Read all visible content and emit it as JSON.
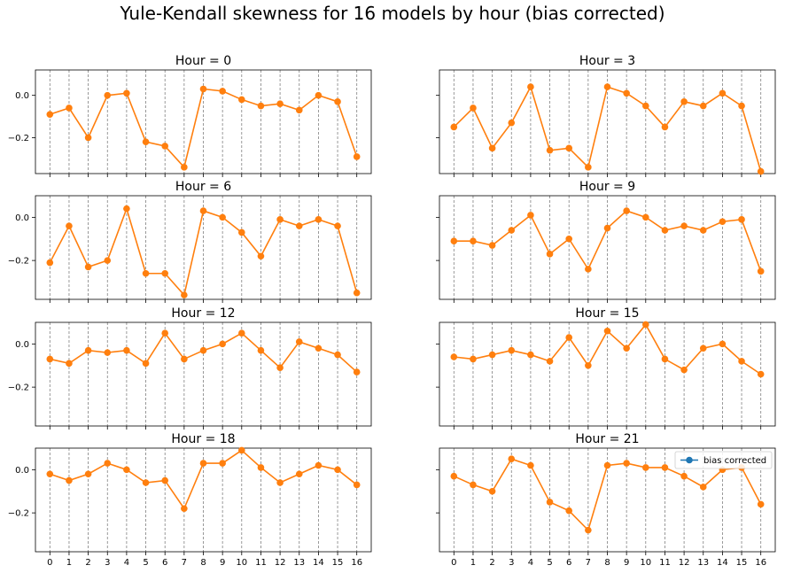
{
  "title": "Yule-Kendall skewness for 16 models by hour (bias corrected)",
  "colors": {
    "line": "#ff7f0e",
    "legend_marker": "#1f77b4",
    "grid": "#808080"
  },
  "chart_data": {
    "type": "line",
    "x": [
      0,
      1,
      2,
      3,
      4,
      5,
      6,
      7,
      8,
      9,
      10,
      11,
      12,
      13,
      14,
      15,
      16
    ],
    "ylim_top_row": [
      -0.37,
      0.12
    ],
    "ylim_other_rows": [
      -0.38,
      0.1
    ],
    "yticks": [
      -0.2,
      0.0
    ],
    "ytick_labels": [
      "−0.2",
      "0.0"
    ],
    "xtick_labels": [
      "0",
      "1",
      "2",
      "3",
      "4",
      "5",
      "6",
      "7",
      "8",
      "9",
      "10",
      "11",
      "12",
      "13",
      "14",
      "15",
      "16"
    ],
    "grid": "vertical dashed lines at each x",
    "legend": {
      "entry": "bias corrected",
      "placement": "upper-right of Hour = 21 panel"
    },
    "panels": [
      {
        "title": "Hour = 0",
        "values": [
          -0.09,
          -0.06,
          -0.2,
          0.0,
          0.01,
          -0.22,
          -0.24,
          -0.34,
          0.03,
          0.02,
          -0.02,
          -0.05,
          -0.04,
          -0.07,
          0.0,
          -0.03,
          -0.29
        ]
      },
      {
        "title": "Hour = 3",
        "values": [
          -0.15,
          -0.06,
          -0.25,
          -0.13,
          0.04,
          -0.26,
          -0.25,
          -0.34,
          0.04,
          0.01,
          -0.05,
          -0.15,
          -0.03,
          -0.05,
          0.01,
          -0.05,
          -0.36
        ]
      },
      {
        "title": "Hour = 6",
        "values": [
          -0.21,
          -0.04,
          -0.23,
          -0.2,
          0.04,
          -0.26,
          -0.26,
          -0.36,
          0.03,
          0.0,
          -0.07,
          -0.18,
          -0.01,
          -0.04,
          -0.01,
          -0.04,
          -0.35
        ]
      },
      {
        "title": "Hour = 9",
        "values": [
          -0.11,
          -0.11,
          -0.13,
          -0.06,
          0.01,
          -0.17,
          -0.1,
          -0.24,
          -0.05,
          0.03,
          0.0,
          -0.06,
          -0.04,
          -0.06,
          -0.02,
          -0.01,
          -0.25
        ]
      },
      {
        "title": "Hour = 12",
        "values": [
          -0.07,
          -0.09,
          -0.03,
          -0.04,
          -0.03,
          -0.09,
          0.05,
          -0.07,
          -0.03,
          0.0,
          0.05,
          -0.03,
          -0.11,
          0.01,
          -0.02,
          -0.05,
          -0.13
        ]
      },
      {
        "title": "Hour = 15",
        "values": [
          -0.06,
          -0.07,
          -0.05,
          -0.03,
          -0.05,
          -0.08,
          0.03,
          -0.1,
          0.06,
          -0.02,
          0.09,
          -0.07,
          -0.12,
          -0.02,
          0.0,
          -0.08,
          -0.14
        ]
      },
      {
        "title": "Hour = 18",
        "values": [
          -0.02,
          -0.05,
          -0.02,
          0.03,
          0.0,
          -0.06,
          -0.05,
          -0.18,
          0.03,
          0.03,
          0.09,
          0.01,
          -0.06,
          -0.02,
          0.02,
          0.0,
          -0.07
        ]
      },
      {
        "title": "Hour = 21",
        "values": [
          -0.03,
          -0.07,
          -0.1,
          0.05,
          0.02,
          -0.15,
          -0.19,
          -0.28,
          0.02,
          0.03,
          0.01,
          0.01,
          -0.03,
          -0.08,
          0.0,
          0.01,
          -0.16
        ]
      }
    ]
  }
}
